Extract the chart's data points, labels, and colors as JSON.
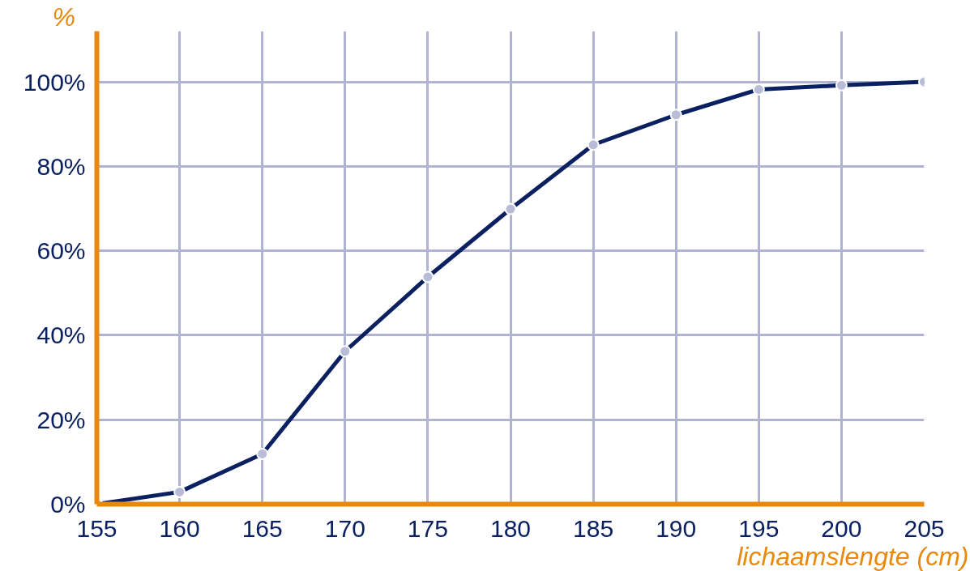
{
  "chart_data": {
    "type": "line",
    "xlabel": "lichaamslengte (cm)",
    "ylabel": "%",
    "x": [
      155,
      160,
      165,
      170,
      175,
      180,
      185,
      190,
      195,
      200,
      205
    ],
    "series": [
      {
        "color": "#0a2060",
        "values": [
          0,
          2.9,
          11.9,
          36.2,
          53.8,
          69.9,
          85.1,
          92.2,
          98.2,
          99.2,
          100
        ]
      }
    ],
    "xlim": [
      155,
      205
    ],
    "ylim": [
      0,
      112
    ],
    "xticks": [
      155,
      160,
      165,
      170,
      175,
      180,
      185,
      190,
      195,
      200,
      205
    ],
    "yticks": [
      {
        "value": 0,
        "label": "0%"
      },
      {
        "value": 20,
        "label": "20%"
      },
      {
        "value": 40,
        "label": "40%"
      },
      {
        "value": 60,
        "label": "60%"
      },
      {
        "value": 80,
        "label": "80%"
      },
      {
        "value": 100,
        "label": "100%"
      }
    ],
    "grid": true,
    "marker": "circle",
    "line_style": "solid"
  }
}
